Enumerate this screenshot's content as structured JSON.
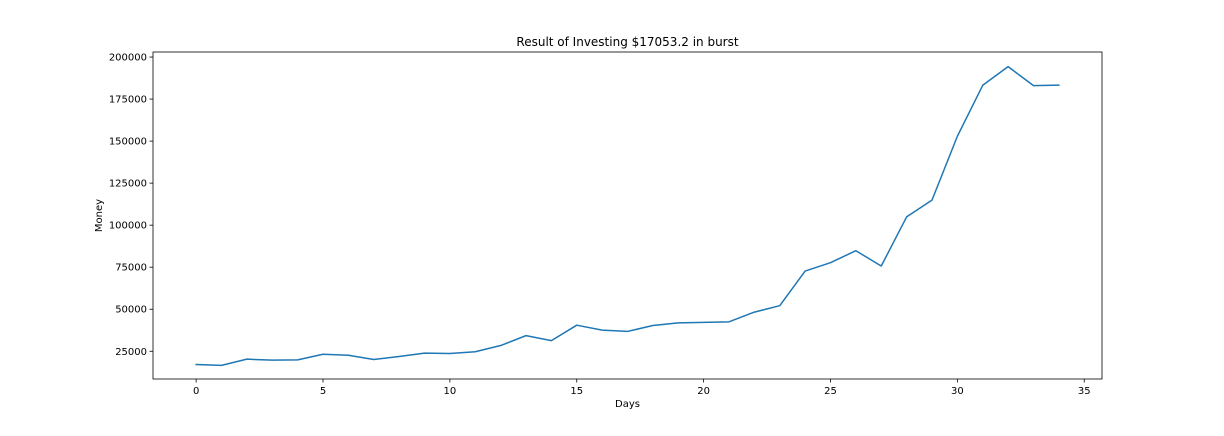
{
  "chart_data": {
    "type": "line",
    "title": "Result of Investing $17053.2 in burst",
    "xlabel": "Days",
    "ylabel": "Money",
    "xlim": [
      -1.7,
      35.7
    ],
    "ylim": [
      8500,
      203000
    ],
    "xticks": [
      0,
      5,
      10,
      15,
      20,
      25,
      30,
      35
    ],
    "yticks": [
      25000,
      50000,
      75000,
      100000,
      125000,
      150000,
      175000,
      200000
    ],
    "grid": false,
    "line_color": "#1f77b4",
    "series": [
      {
        "x": [
          0,
          1,
          2,
          3,
          4,
          5,
          6,
          7,
          8,
          9,
          10,
          11,
          12,
          13,
          14,
          15,
          16,
          17,
          18,
          19,
          20,
          21,
          22,
          23,
          24,
          25,
          26,
          27,
          28,
          29,
          30,
          31,
          32,
          33,
          34
        ],
        "y": [
          17100,
          16600,
          20300,
          19700,
          19900,
          23200,
          22600,
          20100,
          21900,
          23900,
          23700,
          24700,
          28400,
          34300,
          31300,
          40500,
          37600,
          36800,
          40300,
          41900,
          42200,
          42500,
          48300,
          52100,
          72700,
          77700,
          84800,
          75700,
          104900,
          114900,
          152900,
          183200,
          194300,
          183000,
          183300
        ]
      }
    ]
  }
}
